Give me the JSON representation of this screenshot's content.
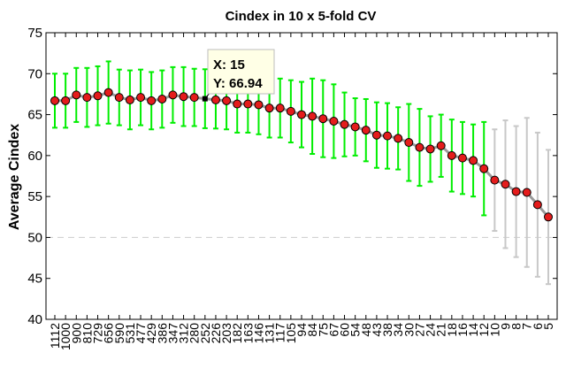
{
  "chart_data": {
    "type": "line",
    "title": "Cindex in 10 x 5-fold CV",
    "xlabel": "",
    "ylabel": "Average Cindex",
    "ylim": [
      40,
      75
    ],
    "yticks": [
      40,
      45,
      50,
      55,
      60,
      65,
      70,
      75
    ],
    "categories": [
      "1112",
      "1000",
      "900",
      "810",
      "729",
      "656",
      "590",
      "531",
      "477",
      "429",
      "386",
      "347",
      "312",
      "280",
      "252",
      "226",
      "203",
      "182",
      "163",
      "146",
      "131",
      "117",
      "105",
      "94",
      "84",
      "75",
      "67",
      "60",
      "54",
      "48",
      "43",
      "38",
      "34",
      "30",
      "27",
      "24",
      "21",
      "18",
      "16",
      "14",
      "12",
      "10",
      "9",
      "8",
      "7",
      "6",
      "5"
    ],
    "series": [
      {
        "values": [
          66.7,
          66.7,
          67.4,
          67.1,
          67.3,
          67.7,
          67.1,
          66.8,
          67.1,
          66.7,
          66.9,
          67.4,
          67.2,
          67.1,
          66.94,
          66.8,
          66.7,
          66.3,
          66.3,
          66.2,
          65.8,
          65.8,
          65.4,
          65.0,
          64.8,
          64.5,
          64.2,
          63.8,
          63.5,
          63.1,
          62.5,
          62.4,
          62.1,
          61.6,
          61.0,
          60.8,
          61.2,
          60.0,
          59.7,
          59.4,
          58.4,
          57.0,
          56.5,
          55.6,
          55.5,
          54.0,
          52.5
        ],
        "errors": [
          3.3,
          3.3,
          3.3,
          3.6,
          3.6,
          3.8,
          3.4,
          3.6,
          3.4,
          3.5,
          3.5,
          3.4,
          3.6,
          3.5,
          3.6,
          3.5,
          3.5,
          3.5,
          3.5,
          3.6,
          3.6,
          3.6,
          3.8,
          4.0,
          4.6,
          4.7,
          4.5,
          3.9,
          3.5,
          3.8,
          4.0,
          4.0,
          3.8,
          4.7,
          4.7,
          4.0,
          3.8,
          4.4,
          4.4,
          4.4,
          5.7,
          6.2,
          7.8,
          8.0,
          9.1,
          8.8,
          8.2
        ],
        "error_color_in": "#00ee00",
        "error_color_out": "#c8c8c8",
        "error_split_after_index": 40
      }
    ],
    "reference_line": {
      "y": 50,
      "style": "dashed",
      "color": "#cccccc"
    },
    "highlight": {
      "index": 14,
      "x_text": "X: 15",
      "y_text": "Y: 66.94"
    },
    "colors": {
      "line": "#9a9a9a",
      "marker_fill": "#e41c1c",
      "marker_edge": "#000000",
      "tooltip_bg": "#ffffe6"
    }
  }
}
